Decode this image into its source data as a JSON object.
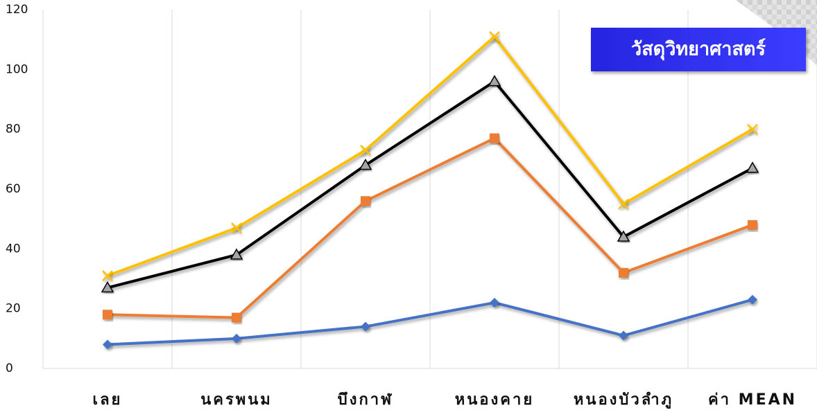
{
  "chart_data": {
    "type": "line",
    "title": "วัสดุวิทยาศาสตร์",
    "categories": [
      "เลย",
      "นครพนม",
      "บึงกาฬ",
      "หนองคาย",
      "หนองบัวลำภู",
      "ค่า MEAN"
    ],
    "series": [
      {
        "color": "#4472c4",
        "marker": "diamond",
        "values": [
          8,
          10,
          14,
          22,
          11,
          23
        ]
      },
      {
        "color": "#ed7d31",
        "marker": "square",
        "values": [
          18,
          17,
          56,
          77,
          32,
          48
        ]
      },
      {
        "color": "#000000",
        "marker": "triangle",
        "values": [
          27,
          38,
          68,
          96,
          44,
          67
        ]
      },
      {
        "color": "#ffc000",
        "marker": "x",
        "values": [
          31,
          47,
          73,
          111,
          55,
          80
        ]
      }
    ],
    "ylim": [
      0,
      120
    ],
    "yticks": [
      0,
      20,
      40,
      60,
      80,
      100,
      120
    ],
    "grid": true
  }
}
